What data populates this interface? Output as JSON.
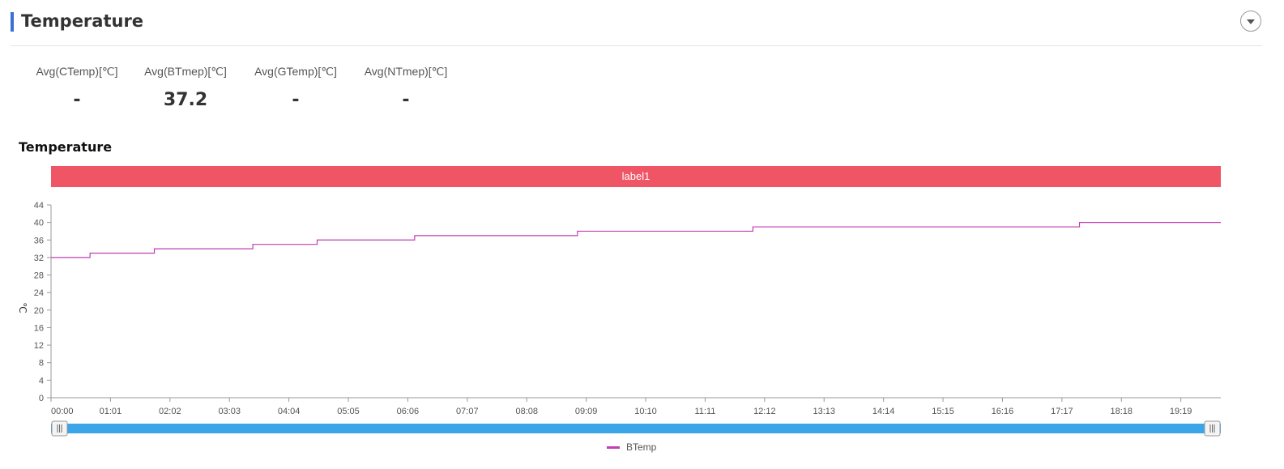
{
  "header": {
    "title": "Temperature"
  },
  "stats": [
    {
      "label": "Avg(CTemp)[℃]",
      "value": "-"
    },
    {
      "label": "Avg(BTmep)[℃]",
      "value": "37.2"
    },
    {
      "label": "Avg(GTemp)[℃]",
      "value": "-"
    },
    {
      "label": "Avg(NTmep)[℃]",
      "value": "-"
    }
  ],
  "chart_title": "Temperature",
  "chart_data": {
    "type": "line",
    "title": "Temperature",
    "band_label": "label1",
    "band_color": "#ef5565",
    "ylabel": "℃",
    "xlabel": "",
    "ylim": [
      0,
      44
    ],
    "yticks": [
      0,
      4,
      8,
      12,
      16,
      20,
      24,
      28,
      32,
      36,
      40,
      44
    ],
    "x_ticks": [
      "00:00",
      "01:01",
      "02:02",
      "03:03",
      "04:04",
      "05:05",
      "06:06",
      "07:07",
      "08:08",
      "09:09",
      "10:10",
      "11:11",
      "12:12",
      "13:13",
      "14:14",
      "15:15",
      "16:16",
      "17:17",
      "18:18",
      "19:19"
    ],
    "x_range_minutes": [
      0,
      1200
    ],
    "step": "after",
    "series": [
      {
        "name": "BTemp",
        "color": "#c23fb1",
        "points": [
          {
            "t": 0,
            "y": 32
          },
          {
            "t": 40,
            "y": 33
          },
          {
            "t": 106,
            "y": 34
          },
          {
            "t": 207,
            "y": 35
          },
          {
            "t": 273,
            "y": 36
          },
          {
            "t": 373,
            "y": 37
          },
          {
            "t": 540,
            "y": 38
          },
          {
            "t": 720,
            "y": 39
          },
          {
            "t": 1055,
            "y": 40
          },
          {
            "t": 1200,
            "y": 40
          }
        ]
      }
    ],
    "grid": false,
    "legend": "bottom-center",
    "zoom_slider": true
  }
}
